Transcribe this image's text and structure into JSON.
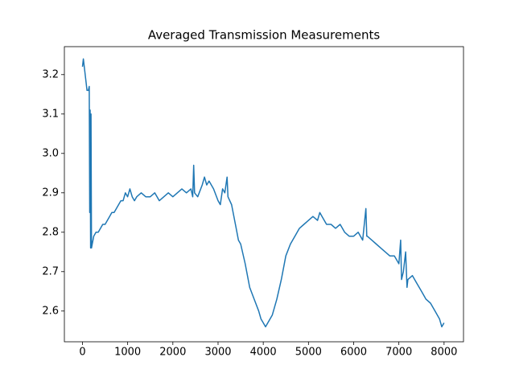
{
  "chart_data": {
    "type": "line",
    "title": "Averaged Transmission Measurements",
    "x": [
      0,
      20,
      50,
      80,
      100,
      130,
      150,
      160,
      170,
      180,
      190,
      200,
      250,
      300,
      350,
      400,
      450,
      500,
      550,
      600,
      650,
      700,
      750,
      800,
      850,
      900,
      950,
      1000,
      1050,
      1100,
      1150,
      1200,
      1300,
      1400,
      1500,
      1600,
      1700,
      1800,
      1900,
      2000,
      2100,
      2200,
      2300,
      2400,
      2440,
      2460,
      2480,
      2550,
      2650,
      2700,
      2750,
      2800,
      2900,
      3000,
      3050,
      3100,
      3150,
      3200,
      3220,
      3300,
      3400,
      3450,
      3500,
      3600,
      3700,
      3800,
      3900,
      3950,
      4000,
      4050,
      4100,
      4200,
      4300,
      4400,
      4500,
      4600,
      4700,
      4800,
      4900,
      5000,
      5100,
      5200,
      5250,
      5300,
      5400,
      5500,
      5600,
      5700,
      5800,
      5900,
      6000,
      6100,
      6200,
      6270,
      6290,
      6300,
      6400,
      6500,
      6600,
      6700,
      6800,
      6900,
      7000,
      7040,
      7060,
      7100,
      7150,
      7180,
      7200,
      7300,
      7400,
      7500,
      7600,
      7700,
      7800,
      7900,
      7950,
      8000
    ],
    "values": [
      3.22,
      3.24,
      3.21,
      3.18,
      3.16,
      3.16,
      3.17,
      2.85,
      3.11,
      2.76,
      3.1,
      2.76,
      2.79,
      2.8,
      2.8,
      2.81,
      2.82,
      2.82,
      2.83,
      2.84,
      2.85,
      2.85,
      2.86,
      2.87,
      2.88,
      2.88,
      2.9,
      2.89,
      2.91,
      2.89,
      2.88,
      2.89,
      2.9,
      2.89,
      2.89,
      2.9,
      2.88,
      2.89,
      2.9,
      2.89,
      2.9,
      2.91,
      2.9,
      2.91,
      2.89,
      2.97,
      2.9,
      2.89,
      2.92,
      2.94,
      2.92,
      2.93,
      2.91,
      2.88,
      2.87,
      2.91,
      2.9,
      2.94,
      2.89,
      2.87,
      2.81,
      2.78,
      2.77,
      2.72,
      2.66,
      2.63,
      2.6,
      2.58,
      2.57,
      2.56,
      2.57,
      2.59,
      2.63,
      2.68,
      2.74,
      2.77,
      2.79,
      2.81,
      2.82,
      2.83,
      2.84,
      2.83,
      2.85,
      2.84,
      2.82,
      2.82,
      2.81,
      2.82,
      2.8,
      2.79,
      2.79,
      2.8,
      2.78,
      2.86,
      2.79,
      2.79,
      2.78,
      2.77,
      2.76,
      2.75,
      2.74,
      2.74,
      2.72,
      2.78,
      2.68,
      2.7,
      2.75,
      2.66,
      2.68,
      2.69,
      2.67,
      2.65,
      2.63,
      2.62,
      2.6,
      2.58,
      2.56,
      2.57
    ],
    "color": "#1f77b4",
    "xlim": [
      -400,
      8430
    ],
    "ylim": [
      2.522,
      3.271
    ],
    "xticks": [
      0,
      1000,
      2000,
      3000,
      4000,
      5000,
      6000,
      7000,
      8000
    ],
    "yticks": [
      2.6,
      2.7,
      2.8,
      2.9,
      {
        "value": 3,
        "label": "3.0"
      },
      3.1,
      3.2
    ]
  }
}
